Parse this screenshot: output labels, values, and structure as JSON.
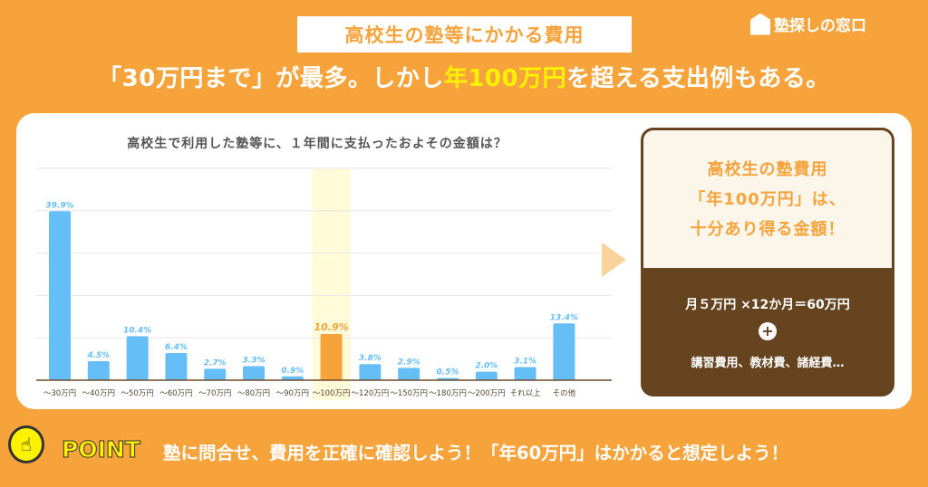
{
  "header": {
    "tag": "高校生の塾等にかかる費用",
    "logo": "塾探しの窓口",
    "headline_pre": "「30万円まで」が最多。しかし",
    "headline_highlight": "年100万円",
    "headline_post": "を超える支出例もある。"
  },
  "chart_data": {
    "type": "bar",
    "title": "高校生で利用した塾等に、１年間に支払ったおよその金額は？",
    "categories": [
      "～30万円",
      "～40万円",
      "～50万円",
      "～60万円",
      "～70万円",
      "～80万円",
      "～90万円",
      "～100万円",
      "～120万円",
      "～150万円",
      "～180万円",
      "～200万円",
      "それ以上",
      "その他"
    ],
    "values": [
      39.9,
      4.5,
      10.4,
      6.4,
      2.7,
      3.3,
      0.9,
      10.9,
      3.8,
      2.9,
      0.5,
      2.0,
      3.1,
      13.4
    ],
    "data_labels": [
      "39.9%",
      "4.5%",
      "10.4%",
      "6.4%",
      "2.7%",
      "3.3%",
      "0.9%",
      "10.9%",
      "3.8%",
      "2.9%",
      "0.5%",
      "2.0%",
      "3.1%",
      "13.4%"
    ],
    "ylim": [
      0,
      50
    ],
    "grid": true,
    "highlight_category": "～100万円",
    "colors": {
      "bar": "#66BEF7",
      "highlight": "#F5A33A",
      "highlight_band": "#FFFBD9"
    }
  },
  "panel": {
    "line1": "高校生の塾費用",
    "line2": "「年100万円」は、",
    "line3": "十分あり得る金額！",
    "formula": "月５万円 ×12か月＝60万円",
    "plus": "+",
    "extras": "講習費用、教材費、諸経費…"
  },
  "footer": {
    "point_label": "POINT",
    "message": "塾に問合せ、費用を正確に確認しよう！「年60万円」はかかると想定しよう！"
  },
  "colors": {
    "background": "#F5A33A",
    "brown": "#65441F",
    "yellow": "#FFF200"
  }
}
